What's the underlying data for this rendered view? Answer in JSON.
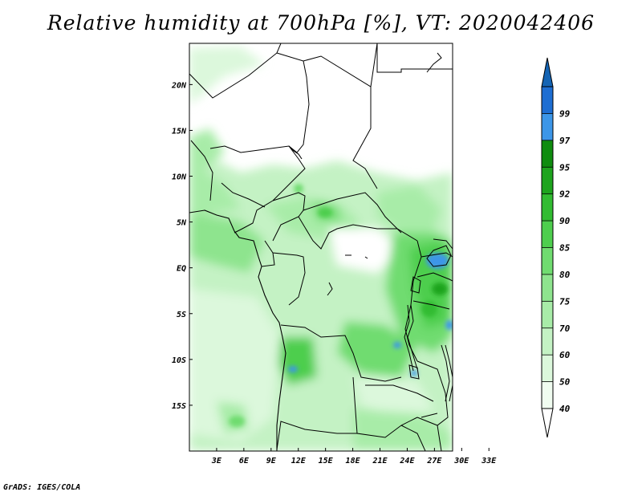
{
  "title": "Relative humidity at 700hPa [%], VT: 2020042406",
  "credit": "GrADS: IGES/COLA",
  "map": {
    "lat_range": [
      -20,
      24.5
    ],
    "lon_range": [
      0,
      29
    ],
    "lat_labels": [
      {
        "lat": 20,
        "label": "20N"
      },
      {
        "lat": 15,
        "label": "15N"
      },
      {
        "lat": 10,
        "label": "10N"
      },
      {
        "lat": 5,
        "label": "5N"
      },
      {
        "lat": 0,
        "label": "EQ"
      },
      {
        "lat": -5,
        "label": "5S"
      },
      {
        "lat": -10,
        "label": "10S"
      },
      {
        "lat": -15,
        "label": "15S"
      }
    ],
    "lon_labels": [
      {
        "lon": 3,
        "label": "3E"
      },
      {
        "lon": 6,
        "label": "6E"
      },
      {
        "lon": 9,
        "label": "9E"
      },
      {
        "lon": 12,
        "label": "12E"
      },
      {
        "lon": 15,
        "label": "15E"
      },
      {
        "lon": 18,
        "label": "18E"
      },
      {
        "lon": 21,
        "label": "21E"
      },
      {
        "lon": 24,
        "label": "24E"
      },
      {
        "lon": 27,
        "label": "27E"
      },
      {
        "lon": 30,
        "label": "30E"
      },
      {
        "lon": 33,
        "label": "33E"
      }
    ]
  },
  "colorbar": {
    "levels": [
      {
        "label": "40",
        "color": "#f0fcf0"
      },
      {
        "label": "50",
        "color": "#dcf8dc"
      },
      {
        "label": "60",
        "color": "#c4f2c4"
      },
      {
        "label": "70",
        "color": "#a8eca8"
      },
      {
        "label": "75",
        "color": "#8ee48e"
      },
      {
        "label": "80",
        "color": "#70dc70"
      },
      {
        "label": "85",
        "color": "#4ece4e"
      },
      {
        "label": "90",
        "color": "#32bc32"
      },
      {
        "label": "92",
        "color": "#1ea41e"
      },
      {
        "label": "95",
        "color": "#0f8c0f"
      },
      {
        "label": "97",
        "color": "#3c96e8"
      },
      {
        "label": "99",
        "color": "#1e6ed2"
      }
    ],
    "bottom_color": "#ffffff",
    "top_color": "#1464b4"
  }
}
